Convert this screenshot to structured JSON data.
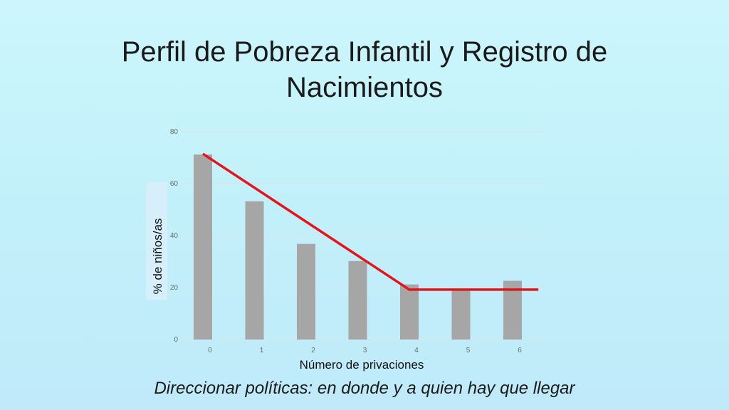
{
  "slide": {
    "title": "Perfil de Pobreza Infantil y Registro de Nacimientos",
    "footer": "Direccionar políticas: en donde y a quien hay que llegar"
  },
  "chart_data": {
    "type": "bar",
    "categories": [
      "0",
      "1",
      "2",
      "3",
      "4",
      "5",
      "6"
    ],
    "values": [
      71.2,
      53.2,
      36.8,
      30.2,
      21.2,
      19.2,
      22.6
    ],
    "xlabel": "Número de privaciones",
    "ylabel": "% de niños/as",
    "ylim": [
      0,
      80
    ],
    "yticks": [
      0,
      20,
      40,
      60,
      80
    ],
    "grid": true,
    "bar_color": "#a6a6a6",
    "trend_line": {
      "color": "#e3151a",
      "points": [
        {
          "x": 0,
          "y": 71.5
        },
        {
          "x": 4,
          "y": 19.2
        },
        {
          "x": 6.5,
          "y": 19.2
        }
      ]
    }
  }
}
